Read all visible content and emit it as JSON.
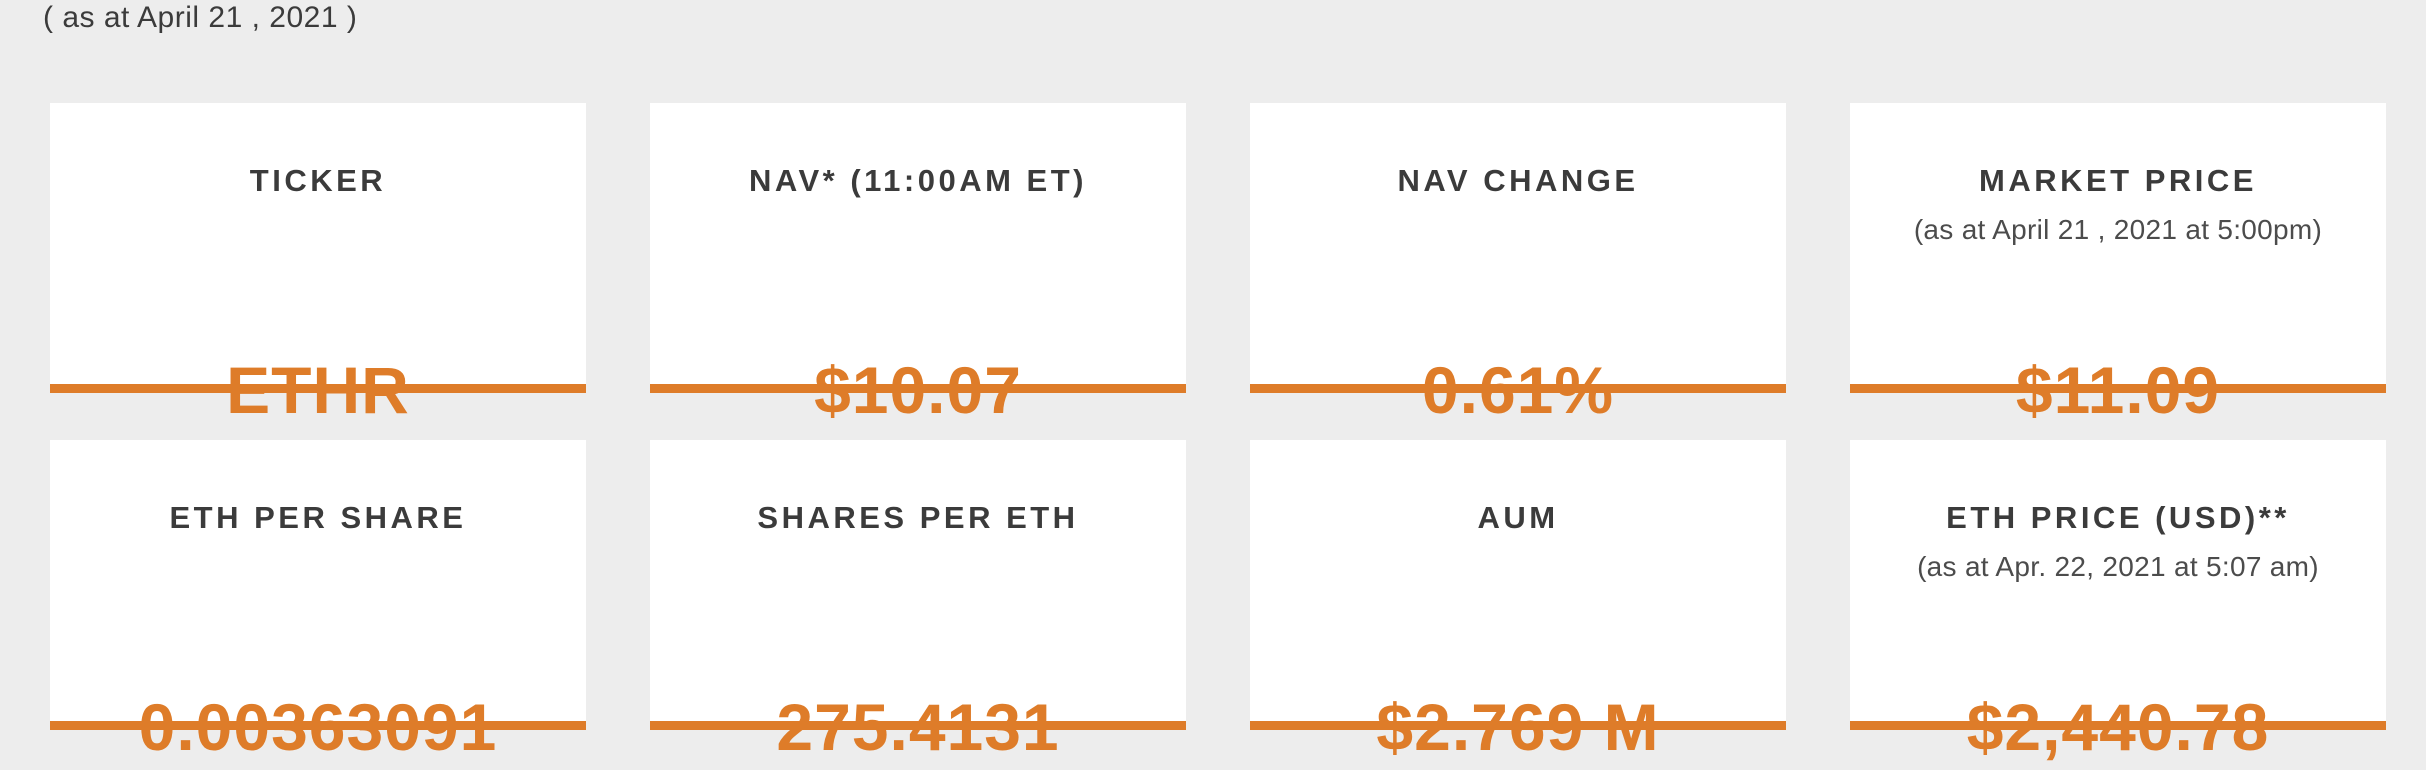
{
  "page": {
    "as_at_label": "( as at April 21 , 2021 )"
  },
  "colors": {
    "accent_orange": "#DE7C29",
    "page_bg": "#EDEDED",
    "card_bg": "#FFFFFF",
    "title_dark": "#3B3B3B",
    "subtitle_gray": "#4C4C4C"
  },
  "cards": [
    {
      "label": "TICKER",
      "subtitle": "",
      "value": "ETHR"
    },
    {
      "label": "NAV* (11:00AM ET)",
      "subtitle": "",
      "value": "$10.07"
    },
    {
      "label": "NAV CHANGE",
      "subtitle": "",
      "value": "0.61%"
    },
    {
      "label": "MARKET PRICE",
      "subtitle": "(as at April 21 , 2021 at 5:00pm)",
      "value": "$11.09"
    },
    {
      "label": "ETH PER SHARE",
      "subtitle": "",
      "value": "0.00363091"
    },
    {
      "label": "SHARES PER ETH",
      "subtitle": "",
      "value": "275.4131"
    },
    {
      "label": "AUM",
      "subtitle": "",
      "value": "$2.769 M"
    },
    {
      "label": "ETH PRICE (USD)**",
      "subtitle": "(as at Apr. 22, 2021 at 5:07 am)",
      "value": "$2,440.78"
    }
  ]
}
